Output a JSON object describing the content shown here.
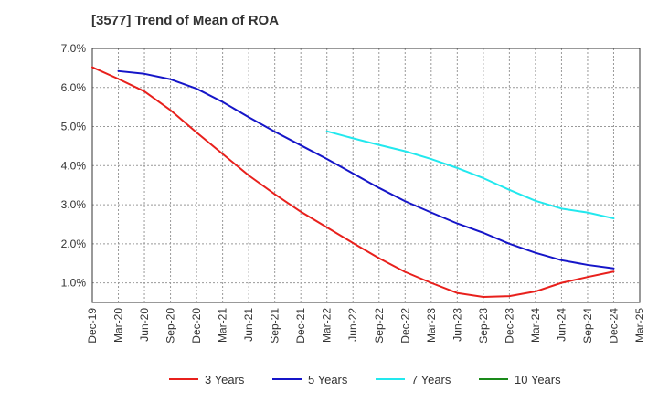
{
  "chart_data": {
    "type": "line",
    "title": "[3577]  Trend of Mean of ROA",
    "xlabel": "",
    "ylabel": "",
    "y_unit": "%",
    "ylim": [
      0.5,
      7.0
    ],
    "yticks": [
      1.0,
      2.0,
      3.0,
      4.0,
      5.0,
      6.0,
      7.0
    ],
    "ytick_labels": [
      "1.0%",
      "2.0%",
      "3.0%",
      "4.0%",
      "5.0%",
      "6.0%",
      "7.0%"
    ],
    "categories": [
      "Dec-19",
      "Mar-20",
      "Jun-20",
      "Sep-20",
      "Dec-20",
      "Mar-21",
      "Jun-21",
      "Sep-21",
      "Dec-21",
      "Mar-22",
      "Jun-22",
      "Sep-22",
      "Dec-22",
      "Mar-23",
      "Jun-23",
      "Sep-23",
      "Dec-23",
      "Mar-24",
      "Jun-24",
      "Sep-24",
      "Dec-24",
      "Mar-25"
    ],
    "grid": true,
    "legend_position": "bottom",
    "series": [
      {
        "name": "3 Years",
        "color": "#e8201c",
        "values": [
          6.52,
          6.22,
          5.9,
          5.42,
          4.85,
          4.3,
          3.75,
          3.27,
          2.82,
          2.42,
          2.02,
          1.63,
          1.28,
          1.0,
          0.74,
          0.64,
          0.66,
          0.78,
          1.0,
          1.15,
          1.29,
          null
        ]
      },
      {
        "name": "5 Years",
        "color": "#1515c8",
        "values": [
          null,
          6.42,
          6.35,
          6.21,
          5.97,
          5.63,
          5.24,
          4.87,
          4.52,
          4.17,
          3.8,
          3.43,
          3.09,
          2.8,
          2.52,
          2.28,
          2.0,
          1.77,
          1.58,
          1.46,
          1.37,
          null
        ]
      },
      {
        "name": "7 Years",
        "color": "#22e8ee",
        "values": [
          null,
          null,
          null,
          null,
          null,
          null,
          null,
          null,
          null,
          4.88,
          4.7,
          4.53,
          4.37,
          4.17,
          3.94,
          3.68,
          3.38,
          3.1,
          2.9,
          2.8,
          2.65,
          null
        ]
      },
      {
        "name": "10 Years",
        "color": "#1a8a1a",
        "values": [
          null,
          null,
          null,
          null,
          null,
          null,
          null,
          null,
          null,
          null,
          null,
          null,
          null,
          null,
          null,
          null,
          null,
          null,
          null,
          null,
          null,
          null
        ]
      }
    ]
  }
}
